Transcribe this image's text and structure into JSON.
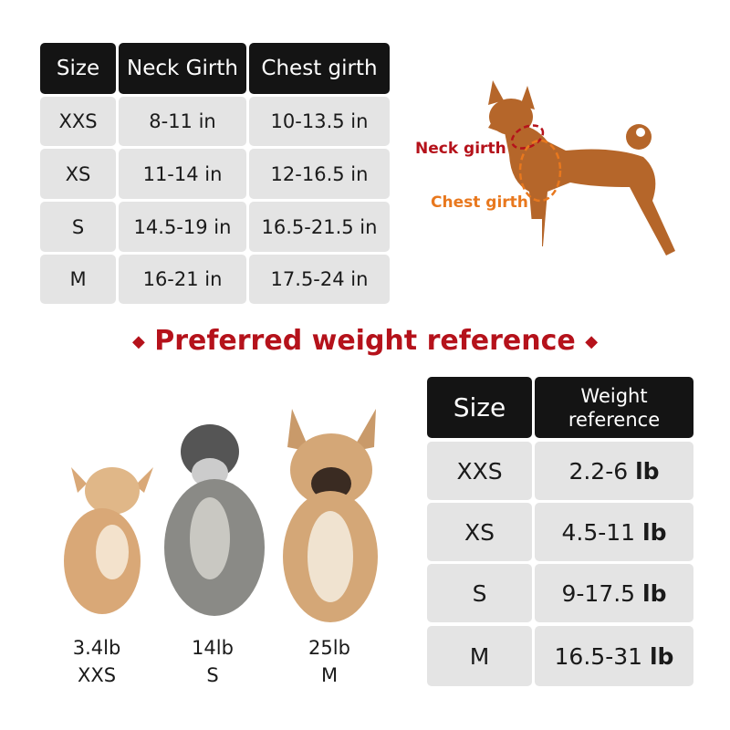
{
  "girth_table": {
    "headers": [
      "Size",
      "Neck Girth",
      "Chest girth"
    ],
    "rows": [
      [
        "XXS",
        "8-11 in",
        "10-13.5 in"
      ],
      [
        "XS",
        "11-14 in",
        "12-16.5 in"
      ],
      [
        "S",
        "14.5-19 in",
        "16.5-21.5 in"
      ],
      [
        "M",
        "16-21 in",
        "17.5-24 in"
      ]
    ]
  },
  "diagram": {
    "neck_label": "Neck girth",
    "chest_label": "Chest girth",
    "neck_color": "#b5121b",
    "chest_color": "#e8781e"
  },
  "section_title": "Preferred weight reference",
  "title_icon": "diamond-icon",
  "weight_table": {
    "headers": [
      "Size",
      "Weight reference"
    ],
    "unit": "lb",
    "rows": [
      [
        "XXS",
        "2.2-6"
      ],
      [
        "XS",
        "4.5-11"
      ],
      [
        "S",
        "9-17.5"
      ],
      [
        "M",
        "16.5-31"
      ]
    ]
  },
  "examples": [
    {
      "weight": "3.4lb",
      "size": "XXS"
    },
    {
      "weight": "14lb",
      "size": "S"
    },
    {
      "weight": "25lb",
      "size": "M"
    }
  ]
}
